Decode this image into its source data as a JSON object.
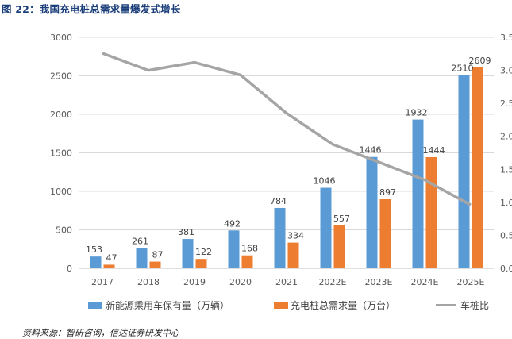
{
  "figure": {
    "title": "图 22：我国充电桩总需求量爆发式增长",
    "source": "资料来源：智研咨询，信达证券研发中心"
  },
  "chart_data": {
    "type": "bar",
    "categories": [
      "2017",
      "2018",
      "2019",
      "2020",
      "2021",
      "2022E",
      "2023E",
      "2024E",
      "2025E"
    ],
    "series": [
      {
        "name": "新能源乘用车保有量（万辆）",
        "type": "bar",
        "axis": "left",
        "color": "#5b9bd5",
        "values": [
          153,
          261,
          381,
          492,
          784,
          1046,
          1446,
          1932,
          2510
        ]
      },
      {
        "name": "充电桩总需求量（万台）",
        "type": "bar",
        "axis": "left",
        "color": "#ed7d31",
        "values": [
          47,
          87,
          122,
          168,
          334,
          557,
          897,
          1444,
          2609
        ]
      },
      {
        "name": "车桩比",
        "type": "line",
        "axis": "right",
        "color": "#a5a5a5",
        "values": [
          3.26,
          3.0,
          3.12,
          2.93,
          2.35,
          1.88,
          1.61,
          1.34,
          0.96
        ]
      }
    ],
    "y_left": {
      "min": 0,
      "max": 3000,
      "ticks": [
        "0",
        "500",
        "1000",
        "1500",
        "2000",
        "2500",
        "3000"
      ]
    },
    "y_right": {
      "min": 0,
      "max": 3.5,
      "ticks": [
        "0.0",
        "0.5",
        "1.0",
        "1.5",
        "2.0",
        "2.5",
        "3.0",
        "3.5"
      ]
    },
    "grid": true,
    "legend": "bottom"
  }
}
